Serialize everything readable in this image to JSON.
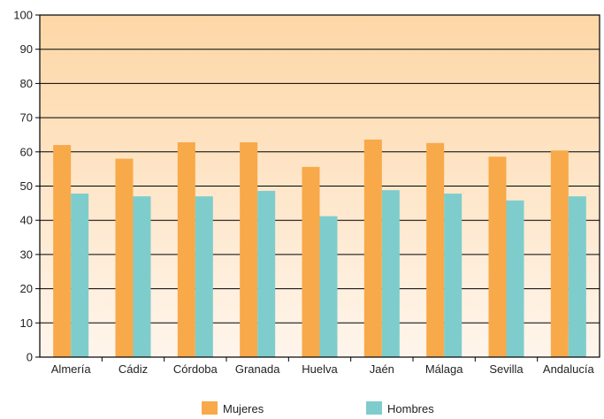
{
  "chart_data": {
    "type": "bar",
    "categories": [
      "Almería",
      "Cádiz",
      "Córdoba",
      "Granada",
      "Huelva",
      "Jaén",
      "Málaga",
      "Sevilla",
      "Andalucía"
    ],
    "series": [
      {
        "name": "Mujeres",
        "color": "#f8a94a",
        "values": [
          62,
          58,
          62.8,
          62.8,
          55.6,
          63.6,
          62.6,
          58.6,
          60.4
        ]
      },
      {
        "name": "Hombres",
        "color": "#7ecdcc",
        "values": [
          47.8,
          47,
          47,
          48.6,
          41.2,
          48.8,
          47.8,
          45.8,
          47
        ]
      }
    ],
    "yticks": [
      "0",
      "10",
      "20",
      "30",
      "40",
      "50",
      "60",
      "70",
      "80",
      "90",
      "100"
    ],
    "ylim": [
      0,
      100
    ],
    "grid": true,
    "legend_position": "bottom",
    "plot_background": {
      "top": "#fdd7a6",
      "bottom": "#fff5ec"
    }
  }
}
